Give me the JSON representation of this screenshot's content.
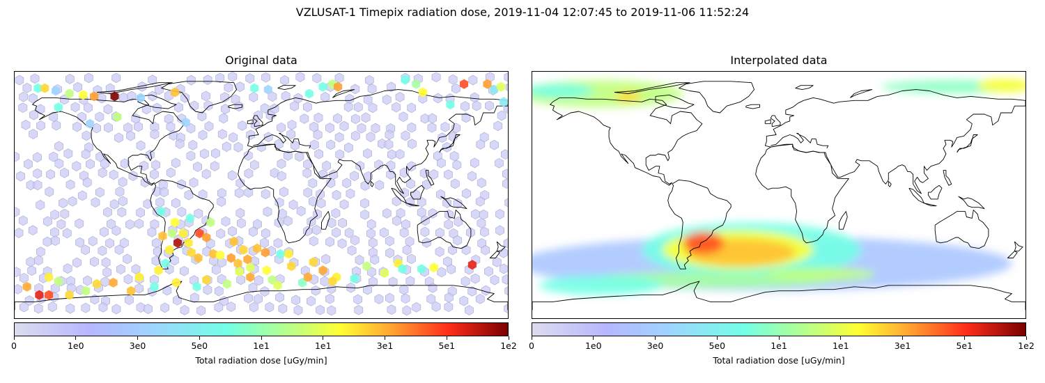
{
  "figure": {
    "suptitle": "VZLUSAT-1 Timepix radiation dose, 2019-11-04 12:07:45 to 2019-11-06 11:52:24"
  },
  "panels": [
    {
      "title": "Original data"
    },
    {
      "title": "Interpolated data"
    }
  ],
  "colorbar": {
    "label": "Total radiation dose [uGy/min]",
    "ticks": [
      "0",
      "1e0",
      "3e0",
      "5e0",
      "1e1",
      "1e1",
      "3e1",
      "5e1",
      "1e2"
    ],
    "colormap": [
      "#dcdcee",
      "#b7b7ff",
      "#9ed4ff",
      "#73ffe6",
      "#c0ff80",
      "#ffff33",
      "#ffa833",
      "#ff2d1b",
      "#7a0000"
    ]
  },
  "chart_data": {
    "type": "heatmap",
    "projection": "plate-carree",
    "x_range_lon": [
      -180,
      180
    ],
    "y_range_lat": [
      -90,
      90
    ],
    "background_level": 0.5,
    "markers": [
      {
        "lon": -163,
        "lat": 78,
        "dose": 5
      },
      {
        "lon": -158,
        "lat": 78,
        "dose": 20
      },
      {
        "lon": -150,
        "lat": 76,
        "dose": 3
      },
      {
        "lon": -140,
        "lat": 74,
        "dose": 8
      },
      {
        "lon": -130,
        "lat": 73,
        "dose": 12
      },
      {
        "lon": -122,
        "lat": 72,
        "dose": 32
      },
      {
        "lon": -107,
        "lat": 72,
        "dose": 100
      },
      {
        "lon": -88,
        "lat": 71,
        "dose": 3
      },
      {
        "lon": -63,
        "lat": 75,
        "dose": 25
      },
      {
        "lon": -55,
        "lat": 53,
        "dose": 3
      },
      {
        "lon": -148,
        "lat": 64,
        "dose": 5
      },
      {
        "lon": -125,
        "lat": 52,
        "dose": 3
      },
      {
        "lon": -105,
        "lat": 57,
        "dose": 8
      },
      {
        "lon": -5,
        "lat": 78,
        "dose": 5
      },
      {
        "lon": 5,
        "lat": 77,
        "dose": 3
      },
      {
        "lon": 35,
        "lat": 74,
        "dose": 5
      },
      {
        "lon": 45,
        "lat": 79,
        "dose": 5
      },
      {
        "lon": 52,
        "lat": 81,
        "dose": 8
      },
      {
        "lon": 56,
        "lat": 79,
        "dose": 32
      },
      {
        "lon": 105,
        "lat": 84,
        "dose": 5
      },
      {
        "lon": 113,
        "lat": 81,
        "dose": 7
      },
      {
        "lon": 118,
        "lat": 75,
        "dose": 12
      },
      {
        "lon": 148,
        "lat": 81,
        "dose": 45
      },
      {
        "lon": 165,
        "lat": 81,
        "dose": 32
      },
      {
        "lon": 170,
        "lat": 77,
        "dose": 4
      },
      {
        "lon": 175,
        "lat": 79,
        "dose": 10
      },
      {
        "lon": 177,
        "lat": 68,
        "dose": 4
      },
      {
        "lon": 138,
        "lat": 66,
        "dose": 5
      },
      {
        "lon": -73,
        "lat": -12,
        "dose": 5
      },
      {
        "lon": -63,
        "lat": -20,
        "dose": 12
      },
      {
        "lon": -52,
        "lat": -17,
        "dose": 5
      },
      {
        "lon": -37,
        "lat": -20,
        "dose": 8
      },
      {
        "lon": -45,
        "lat": -28,
        "dose": 45
      },
      {
        "lon": -57,
        "lat": -28,
        "dose": 15
      },
      {
        "lon": -65,
        "lat": -28,
        "dose": 8
      },
      {
        "lon": -72,
        "lat": -30,
        "dose": 25
      },
      {
        "lon": -61,
        "lat": -35,
        "dose": 80
      },
      {
        "lon": -53,
        "lat": -35,
        "dose": 15
      },
      {
        "lon": -40,
        "lat": -31,
        "dose": 32
      },
      {
        "lon": -35,
        "lat": -43,
        "dose": 25
      },
      {
        "lon": -46,
        "lat": -46,
        "dose": 25
      },
      {
        "lon": -51,
        "lat": -42,
        "dose": 20
      },
      {
        "lon": -67,
        "lat": -40,
        "dose": 15
      },
      {
        "lon": -70,
        "lat": -50,
        "dose": 5
      },
      {
        "lon": -75,
        "lat": -55,
        "dose": 15
      },
      {
        "lon": -89,
        "lat": -60,
        "dose": 15
      },
      {
        "lon": -20,
        "lat": -34,
        "dose": 25
      },
      {
        "lon": -22,
        "lat": -46,
        "dose": 32
      },
      {
        "lon": -13,
        "lat": -40,
        "dose": 20
      },
      {
        "lon": -10,
        "lat": -47,
        "dose": 30
      },
      {
        "lon": -17,
        "lat": -50,
        "dose": 25
      },
      {
        "lon": -16,
        "lat": -56,
        "dose": 10
      },
      {
        "lon": -3,
        "lat": -39,
        "dose": 25
      },
      {
        "lon": 3,
        "lat": -42,
        "dose": 32
      },
      {
        "lon": -8,
        "lat": -53,
        "dose": 10
      },
      {
        "lon": 4,
        "lat": -55,
        "dose": 12
      },
      {
        "lon": 14,
        "lat": -43,
        "dose": 5
      },
      {
        "lon": 22,
        "lat": -52,
        "dose": 20
      },
      {
        "lon": 38,
        "lat": -49,
        "dose": 20
      },
      {
        "lon": 45,
        "lat": -55,
        "dose": 30
      },
      {
        "lon": 55,
        "lat": -60,
        "dose": 15
      },
      {
        "lon": 68,
        "lat": -61,
        "dose": 5
      },
      {
        "lon": 77,
        "lat": -52,
        "dose": 8
      },
      {
        "lon": 90,
        "lat": -57,
        "dose": 10
      },
      {
        "lon": 100,
        "lat": -50,
        "dose": 15
      },
      {
        "lon": 103,
        "lat": -54,
        "dose": 5
      },
      {
        "lon": 117,
        "lat": -54,
        "dose": 5
      },
      {
        "lon": 126,
        "lat": -53,
        "dose": 12
      },
      {
        "lon": 154,
        "lat": -51,
        "dose": 60
      },
      {
        "lon": -30,
        "lat": -44,
        "dose": 12
      },
      {
        "lon": 20,
        "lat": -43,
        "dose": 15
      },
      {
        "lon": -120,
        "lat": -65,
        "dose": 20
      },
      {
        "lon": -108,
        "lat": -64,
        "dose": 30
      },
      {
        "lon": -95,
        "lat": -70,
        "dose": 25
      },
      {
        "lon": -78,
        "lat": -67,
        "dose": 5
      },
      {
        "lon": -62,
        "lat": -64,
        "dose": 15
      },
      {
        "lon": -47,
        "lat": -67,
        "dose": 5
      },
      {
        "lon": -40,
        "lat": -62,
        "dose": 20
      },
      {
        "lon": -25,
        "lat": -65,
        "dose": 8
      },
      {
        "lon": -8,
        "lat": -60,
        "dose": 30
      },
      {
        "lon": 8,
        "lat": -62,
        "dose": 8
      },
      {
        "lon": 12,
        "lat": -66,
        "dose": 10
      },
      {
        "lon": 30,
        "lat": -64,
        "dose": 6
      },
      {
        "lon": 34,
        "lat": -60,
        "dose": 30
      },
      {
        "lon": 52,
        "lat": -63,
        "dose": 20
      },
      {
        "lon": -148,
        "lat": -63,
        "dose": 8
      },
      {
        "lon": -155,
        "lat": -60,
        "dose": 15
      },
      {
        "lon": -171,
        "lat": -67,
        "dose": 30
      },
      {
        "lon": -162,
        "lat": -73,
        "dose": 60
      },
      {
        "lon": -155,
        "lat": -73,
        "dose": 45
      },
      {
        "lon": -140,
        "lat": -73,
        "dose": 20
      },
      {
        "lon": -128,
        "lat": -70,
        "dose": 8
      }
    ],
    "interp_blobs": [
      {
        "lon": -130,
        "lat": 74,
        "rlon": 60,
        "rlat": 10,
        "dose": 8
      },
      {
        "lon": -160,
        "lat": 76,
        "rlon": 25,
        "rlat": 5,
        "dose": 5
      },
      {
        "lon": 130,
        "lat": 79,
        "rlon": 55,
        "rlat": 5,
        "dose": 6
      },
      {
        "lon": 165,
        "lat": 80,
        "rlon": 20,
        "rlat": 5,
        "dose": 12
      },
      {
        "lon": -110,
        "lat": 72,
        "rlon": 10,
        "rlat": 4,
        "dose": 20
      },
      {
        "lon": -10,
        "lat": -50,
        "rlon": 180,
        "rlat": 20,
        "dose": 2
      },
      {
        "lon": -20,
        "lat": -40,
        "rlon": 80,
        "rlat": 20,
        "dose": 5
      },
      {
        "lon": -30,
        "lat": -40,
        "rlon": 55,
        "rlat": 14,
        "dose": 12
      },
      {
        "lon": -50,
        "lat": -62,
        "rlon": 90,
        "rlat": 6,
        "dose": 7
      },
      {
        "lon": -28,
        "lat": -42,
        "rlon": 40,
        "rlat": 10,
        "dose": 25
      },
      {
        "lon": -55,
        "lat": -35,
        "rlon": 15,
        "rlat": 8,
        "dose": 45
      },
      {
        "lon": -130,
        "lat": -66,
        "rlon": 45,
        "rlat": 7,
        "dose": 5
      },
      {
        "lon": 30,
        "lat": -58,
        "rlon": 40,
        "rlat": 5,
        "dose": 8
      }
    ]
  }
}
